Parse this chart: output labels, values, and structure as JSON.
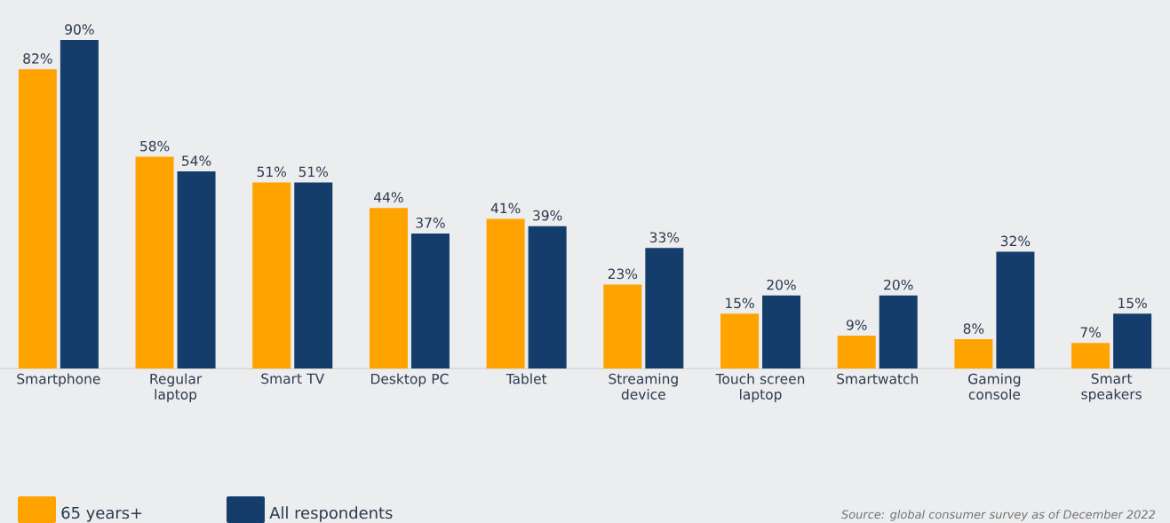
{
  "chart_data": {
    "type": "bar",
    "categories": [
      "Smartphone",
      "Regular laptop",
      "Smart TV",
      "Desktop PC",
      "Tablet",
      "Streaming device",
      "Touch screen laptop",
      "Smartwatch",
      "Gaming console",
      "Smart speakers"
    ],
    "series": [
      {
        "name": "65 years+",
        "color": "#ffa300",
        "values": [
          82,
          58,
          51,
          44,
          41,
          23,
          15,
          9,
          8,
          7
        ],
        "value_labels": [
          "82%",
          "58%",
          "51%",
          "44%",
          "41%",
          "23%",
          "15%",
          "9%",
          "8%",
          "7%"
        ]
      },
      {
        "name": "All respondents",
        "color": "#143d6b",
        "values": [
          90,
          54,
          51,
          37,
          39,
          33,
          20,
          20,
          32,
          15
        ],
        "value_labels": [
          "90%",
          "54%",
          "51%",
          "37%",
          "39%",
          "33%",
          "20%",
          "20%",
          "32%",
          "15%"
        ]
      }
    ],
    "legend": "bottom left",
    "annotations": [
      "Source: global consumer survey as of December 2022"
    ]
  }
}
